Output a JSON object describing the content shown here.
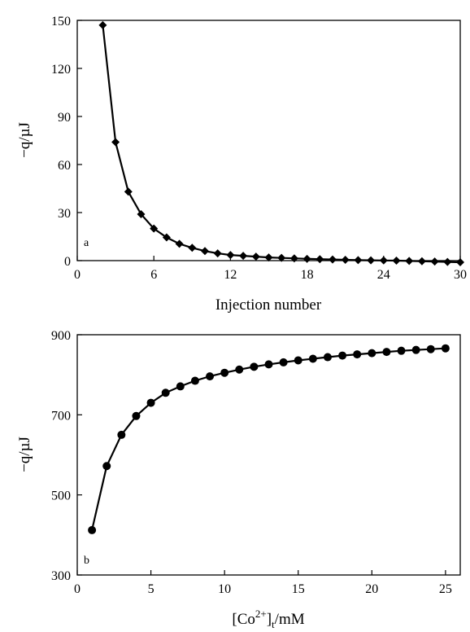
{
  "chart_data": [
    {
      "type": "line",
      "panel_label": "a",
      "xlabel": "Injection number",
      "ylabel": "−q/µJ",
      "xlim": [
        0,
        30
      ],
      "ylim": [
        0,
        150
      ],
      "xticks": [
        0,
        6,
        12,
        18,
        24,
        30
      ],
      "yticks": [
        0,
        30,
        60,
        90,
        120,
        150
      ],
      "grid": false,
      "marker": "diamond",
      "series": [
        {
          "x": [
            2,
            3,
            4,
            5,
            6,
            7,
            8,
            9,
            10,
            11,
            12,
            13,
            14,
            15,
            16,
            17,
            18,
            19,
            20,
            21,
            22,
            23,
            24,
            25,
            26,
            27,
            28,
            29,
            30
          ],
          "y": [
            147,
            74,
            43,
            29,
            20,
            14.5,
            10.5,
            8,
            6,
            4.5,
            3.5,
            3,
            2.5,
            2,
            1.7,
            1.4,
            1.1,
            0.9,
            0.7,
            0.5,
            0.3,
            0.2,
            0.1,
            0,
            -0.2,
            -0.4,
            -0.6,
            -0.8,
            -1
          ]
        }
      ]
    },
    {
      "type": "line",
      "panel_label": "b",
      "xlabel_main": "[Co",
      "xlabel_sup": "2+",
      "xlabel_sub": "t",
      "xlabel_rest": "/mM",
      "ylabel": "−q/µJ",
      "xlim": [
        0,
        26
      ],
      "ylim": [
        300,
        900
      ],
      "xticks": [
        0,
        5,
        10,
        15,
        20,
        25
      ],
      "yticks": [
        300,
        500,
        700,
        900
      ],
      "grid": false,
      "marker": "circle",
      "series": [
        {
          "x": [
            1,
            2,
            3,
            4,
            5,
            6,
            7,
            8,
            9,
            10,
            11,
            12,
            13,
            14,
            15,
            16,
            17,
            18,
            19,
            20,
            21,
            22,
            23,
            24,
            25
          ],
          "y": [
            412,
            572,
            650,
            697,
            730,
            755,
            771,
            785,
            796,
            805,
            813,
            820,
            826,
            831,
            836,
            840,
            844,
            848,
            851,
            854,
            857,
            860,
            862,
            864,
            866
          ]
        }
      ]
    }
  ]
}
